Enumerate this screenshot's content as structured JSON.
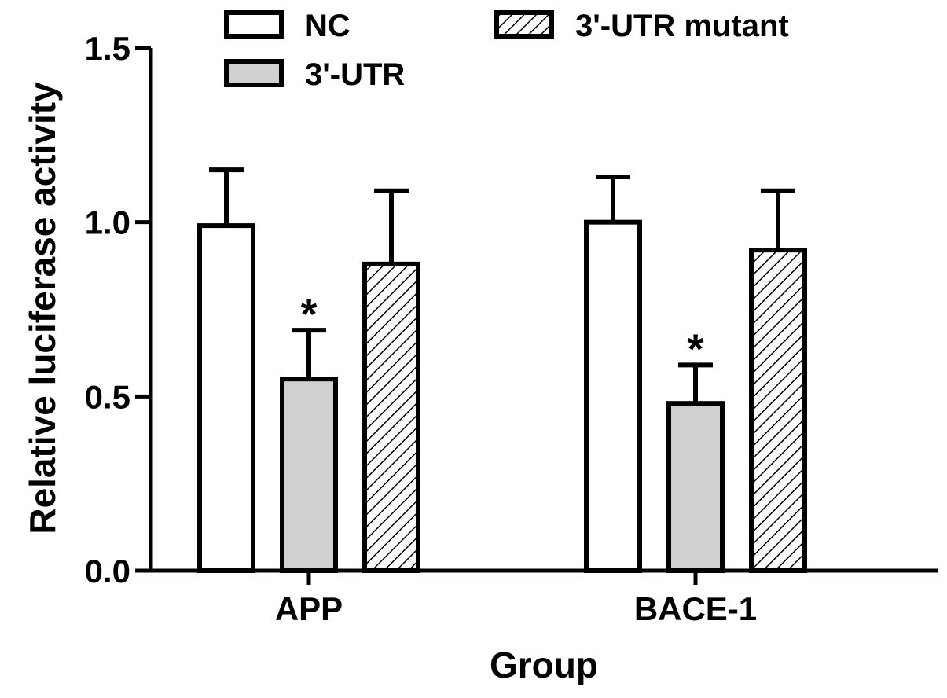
{
  "chart_data": {
    "type": "bar",
    "title": "",
    "xlabel": "Group",
    "ylabel": "Relative luciferase activity",
    "ylim": [
      0,
      1.5
    ],
    "yticks": [
      "0.0",
      "0.5",
      "1.0",
      "1.5"
    ],
    "categories": [
      "APP",
      "BACE-1"
    ],
    "series": [
      {
        "name": "NC",
        "values": [
          0.99,
          1.0
        ],
        "errors": [
          0.16,
          0.13
        ],
        "fill": "#ffffff",
        "pattern": "none"
      },
      {
        "name": "3'-UTR",
        "values": [
          0.55,
          0.48
        ],
        "errors": [
          0.14,
          0.11
        ],
        "fill": "#d0d0d0",
        "pattern": "none"
      },
      {
        "name": "3'-UTR mutant",
        "values": [
          0.88,
          0.92
        ],
        "errors": [
          0.21,
          0.17
        ],
        "fill": "#ffffff",
        "pattern": "hatch"
      }
    ],
    "annotations": [
      {
        "text": "*",
        "series": 1,
        "category": 0
      },
      {
        "text": "*",
        "series": 1,
        "category": 1
      }
    ],
    "legend_position": "top",
    "grid": false
  }
}
